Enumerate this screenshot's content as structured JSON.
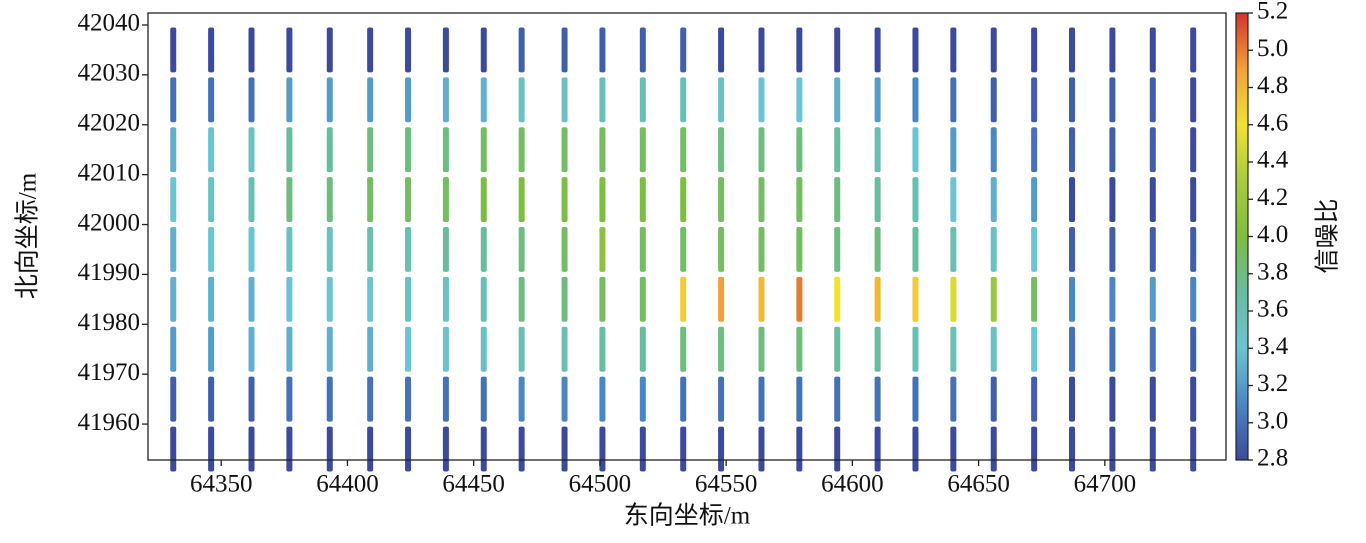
{
  "chart_data": {
    "type": "scatter",
    "x_label": "东向坐标/m",
    "y_label": "北向坐标/m",
    "colorbar_label": "信噪比",
    "xlim": [
      64321,
      64748
    ],
    "ylim": [
      41952.8,
      42042.4
    ],
    "xticks": [
      64350,
      64400,
      64450,
      64500,
      64550,
      64600,
      64650,
      64700
    ],
    "yticks": [
      41960,
      41970,
      41980,
      41990,
      42000,
      42010,
      42020,
      42030,
      42040
    ],
    "clim": [
      2.8,
      5.2
    ],
    "cticks": [
      2.8,
      {
        "value": 3,
        "label": "3.0"
      },
      3.2,
      3.4,
      3.6,
      3.8,
      {
        "value": 4,
        "label": "4.0"
      },
      4.2,
      4.4,
      4.6,
      4.8,
      {
        "value": 5,
        "label": "5.0"
      },
      5.2
    ],
    "colormap": [
      "#3c4a9b",
      "#4a86c4",
      "#6cc4d2",
      "#68bca0",
      "#7cbd43",
      "#a9cc3a",
      "#f1e22e",
      "#f2a13a",
      "#d8312b"
    ],
    "y": [
      41955,
      41965,
      41975,
      41985,
      41995,
      42005,
      42015,
      42025,
      42035
    ],
    "lines": [
      {
        "x": 64331,
        "values": [
          2.8,
          2.9,
          3.2,
          3.3,
          3.3,
          3.4,
          3.3,
          3.0,
          2.8
        ]
      },
      {
        "x": 64346,
        "values": [
          2.8,
          2.9,
          3.2,
          3.3,
          3.4,
          3.5,
          3.4,
          3.0,
          2.8
        ]
      },
      {
        "x": 64362,
        "values": [
          2.8,
          2.9,
          3.3,
          3.3,
          3.4,
          3.6,
          3.5,
          3.0,
          2.8
        ]
      },
      {
        "x": 64377,
        "values": [
          2.8,
          3.0,
          3.3,
          3.4,
          3.5,
          3.8,
          3.7,
          3.2,
          2.8
        ]
      },
      {
        "x": 64393,
        "values": [
          2.8,
          3.0,
          3.3,
          3.4,
          3.5,
          3.8,
          3.7,
          3.2,
          2.8
        ]
      },
      {
        "x": 64409,
        "values": [
          2.8,
          3.0,
          3.3,
          3.4,
          3.6,
          3.9,
          3.8,
          3.2,
          2.8
        ]
      },
      {
        "x": 64424,
        "values": [
          2.8,
          3.0,
          3.4,
          3.5,
          3.6,
          3.9,
          3.8,
          3.2,
          2.8
        ]
      },
      {
        "x": 64439,
        "values": [
          2.8,
          3.0,
          3.4,
          3.5,
          3.7,
          3.9,
          3.8,
          3.3,
          2.8
        ]
      },
      {
        "x": 64454,
        "values": [
          2.8,
          3.0,
          3.5,
          3.6,
          3.7,
          4.0,
          3.9,
          3.3,
          2.8
        ]
      },
      {
        "x": 64469,
        "values": [
          2.8,
          3.1,
          3.6,
          3.8,
          3.8,
          4.0,
          3.9,
          3.5,
          2.9
        ]
      },
      {
        "x": 64486,
        "values": [
          2.8,
          3.1,
          3.6,
          3.8,
          3.9,
          4.0,
          3.9,
          3.5,
          2.9
        ]
      },
      {
        "x": 64501,
        "values": [
          2.8,
          3.1,
          3.7,
          3.9,
          4.1,
          4.0,
          3.9,
          3.6,
          2.9
        ]
      },
      {
        "x": 64517,
        "values": [
          2.8,
          3.1,
          3.7,
          3.9,
          3.9,
          4.0,
          3.9,
          3.6,
          2.9
        ]
      },
      {
        "x": 64533,
        "values": [
          2.8,
          3.0,
          3.8,
          4.7,
          3.9,
          4.0,
          3.9,
          3.6,
          2.9
        ]
      },
      {
        "x": 64548,
        "values": [
          2.8,
          3.0,
          3.8,
          4.9,
          3.9,
          3.9,
          3.8,
          3.5,
          2.8
        ]
      },
      {
        "x": 64564,
        "values": [
          2.8,
          3.0,
          3.8,
          4.8,
          3.9,
          3.9,
          3.8,
          3.4,
          2.8
        ]
      },
      {
        "x": 64579,
        "values": [
          2.8,
          3.0,
          3.8,
          5.0,
          3.9,
          3.9,
          3.8,
          3.4,
          2.8
        ]
      },
      {
        "x": 64594,
        "values": [
          2.8,
          3.0,
          3.7,
          4.6,
          3.8,
          3.8,
          3.7,
          3.3,
          2.8
        ]
      },
      {
        "x": 64610,
        "values": [
          2.8,
          3.0,
          3.7,
          4.8,
          3.8,
          3.7,
          3.6,
          3.2,
          2.8
        ]
      },
      {
        "x": 64625,
        "values": [
          2.8,
          3.0,
          3.6,
          4.7,
          3.7,
          3.6,
          3.4,
          3.1,
          2.8
        ]
      },
      {
        "x": 64640,
        "values": [
          2.8,
          3.0,
          3.6,
          4.5,
          3.6,
          3.4,
          3.2,
          3.0,
          2.8
        ]
      },
      {
        "x": 64656,
        "values": [
          2.8,
          2.9,
          3.5,
          4.2,
          3.5,
          3.3,
          3.1,
          2.9,
          2.8
        ]
      },
      {
        "x": 64672,
        "values": [
          2.8,
          2.9,
          3.4,
          3.9,
          3.4,
          3.2,
          3.0,
          2.9,
          2.8
        ]
      },
      {
        "x": 64687,
        "values": [
          2.8,
          2.8,
          3.0,
          3.1,
          2.9,
          2.8,
          2.9,
          2.9,
          2.8
        ]
      },
      {
        "x": 64703,
        "values": [
          2.8,
          2.8,
          3.0,
          3.1,
          2.9,
          2.8,
          2.9,
          2.9,
          2.8
        ]
      },
      {
        "x": 64719,
        "values": [
          2.8,
          2.8,
          3.0,
          3.2,
          2.9,
          2.8,
          2.9,
          2.9,
          2.8
        ]
      },
      {
        "x": 64735,
        "values": [
          2.8,
          2.8,
          2.9,
          3.1,
          2.9,
          2.8,
          2.8,
          2.8,
          2.8
        ]
      }
    ]
  }
}
